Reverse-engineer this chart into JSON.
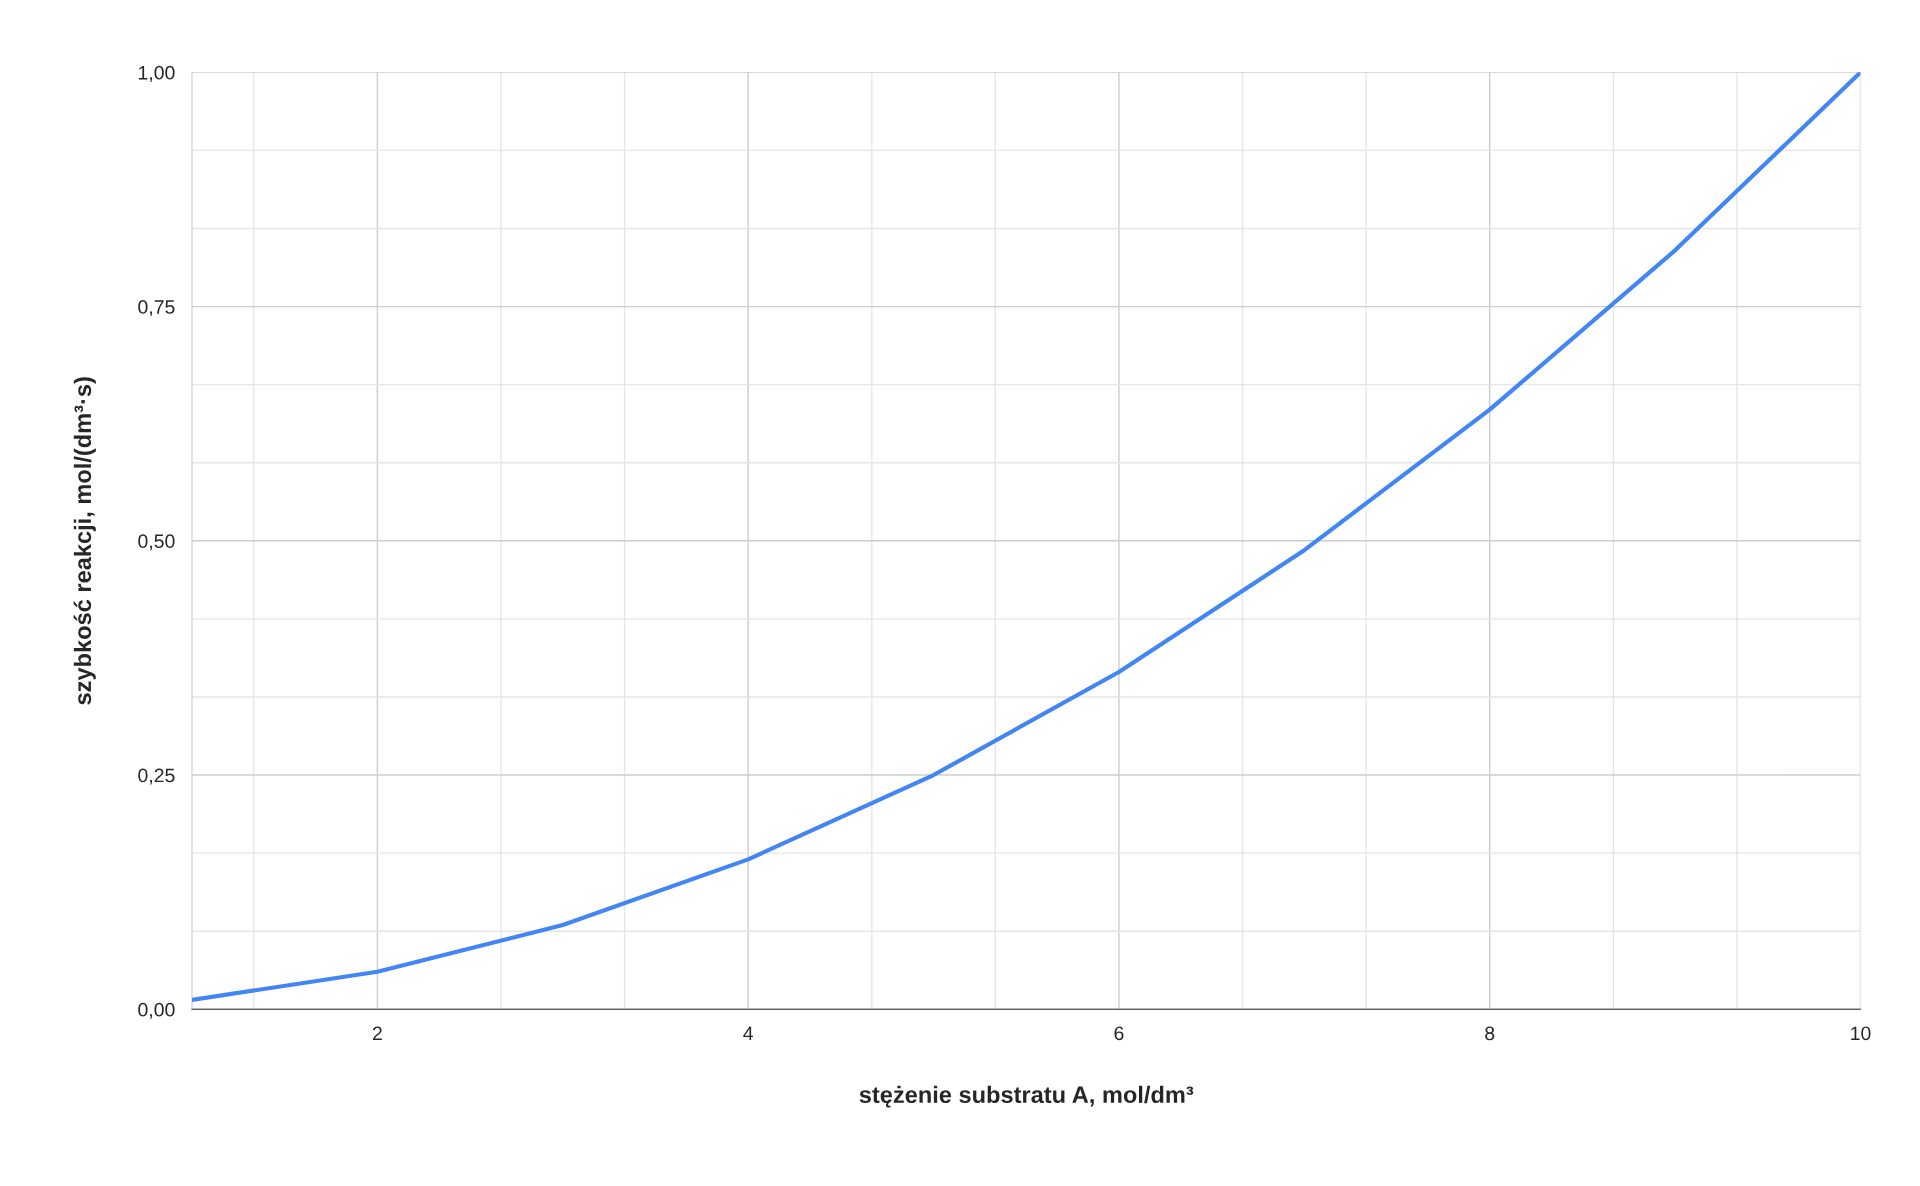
{
  "chart_data": {
    "type": "line",
    "xlabel": "stężenie substratu A, mol/dm³",
    "ylabel": "szybkość reakcji, mol/(dm³·s)",
    "x": [
      1,
      2,
      3,
      4,
      5,
      6,
      7,
      8,
      9,
      10
    ],
    "series": [
      {
        "color": "#4285f4",
        "values": [
          0.01,
          0.04,
          0.09,
          0.16,
          0.25,
          0.36,
          0.49,
          0.64,
          0.81,
          1.0
        ]
      }
    ],
    "xlim": [
      1,
      10
    ],
    "xticks": [
      {
        "value": 1.333,
        "label": null
      },
      2,
      {
        "value": 2.667,
        "label": null
      },
      {
        "value": 3.333,
        "label": null
      },
      4,
      {
        "value": 4.667,
        "label": null
      },
      {
        "value": 5.333,
        "label": null
      },
      6,
      {
        "value": 6.667,
        "label": null
      },
      {
        "value": 7.333,
        "label": null
      },
      8,
      {
        "value": 8.667,
        "label": null
      },
      {
        "value": 9.333,
        "label": null
      },
      10
    ],
    "ylim": [
      0,
      1
    ],
    "yticks": [
      {
        "value": 0,
        "label": "0,00"
      },
      {
        "value": 0.0833,
        "label": null
      },
      {
        "value": 0.1667,
        "label": null
      },
      {
        "value": 0.25,
        "label": "0,25"
      },
      {
        "value": 0.3333,
        "label": null
      },
      {
        "value": 0.4167,
        "label": null
      },
      {
        "value": 0.5,
        "label": "0,50"
      },
      {
        "value": 0.5833,
        "label": null
      },
      {
        "value": 0.6667,
        "label": null
      },
      {
        "value": 0.75,
        "label": "0,75"
      },
      {
        "value": 0.8333,
        "label": null
      },
      {
        "value": 0.9167,
        "label": null
      },
      {
        "value": 1,
        "label": "1,00"
      }
    ],
    "grid": true,
    "marker": "none",
    "line_style": "solid"
  }
}
